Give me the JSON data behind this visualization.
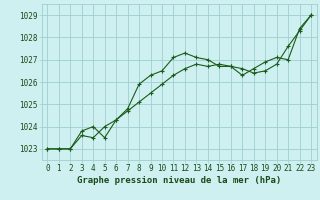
{
  "title": "Graphe pression niveau de la mer (hPa)",
  "background_color": "#cff0f0",
  "grid_color": "#9ecece",
  "line_color": "#1a5c1a",
  "xlim": [
    -0.5,
    23.5
  ],
  "ylim": [
    1022.5,
    1029.5
  ],
  "yticks": [
    1023,
    1024,
    1025,
    1026,
    1027,
    1028,
    1029
  ],
  "xticks": [
    0,
    1,
    2,
    3,
    4,
    5,
    6,
    7,
    8,
    9,
    10,
    11,
    12,
    13,
    14,
    15,
    16,
    17,
    18,
    19,
    20,
    21,
    22,
    23
  ],
  "line1_x": [
    0,
    1,
    2,
    3,
    4,
    5,
    6,
    7,
    8,
    9,
    10,
    11,
    12,
    13,
    14,
    15,
    16,
    17,
    18,
    19,
    20,
    21,
    22,
    23
  ],
  "line1_y": [
    1023.0,
    1023.0,
    1023.0,
    1023.6,
    1023.5,
    1024.0,
    1024.3,
    1024.7,
    1025.1,
    1025.5,
    1025.9,
    1026.3,
    1026.6,
    1026.8,
    1026.7,
    1026.8,
    1026.7,
    1026.6,
    1026.4,
    1026.5,
    1026.8,
    1027.6,
    1028.3,
    1029.0
  ],
  "line2_x": [
    0,
    1,
    2,
    3,
    4,
    5,
    6,
    7,
    8,
    9,
    10,
    11,
    12,
    13,
    14,
    15,
    16,
    17,
    18,
    19,
    20,
    21,
    22,
    23
  ],
  "line2_y": [
    1023.0,
    1023.0,
    1023.0,
    1023.8,
    1024.0,
    1023.5,
    1024.3,
    1024.8,
    1025.9,
    1026.3,
    1026.5,
    1027.1,
    1027.3,
    1027.1,
    1027.0,
    1026.7,
    1026.7,
    1026.3,
    1026.6,
    1026.9,
    1027.1,
    1027.0,
    1028.4,
    1029.0
  ],
  "tick_fontsize": 5.5,
  "title_fontsize": 6.5
}
